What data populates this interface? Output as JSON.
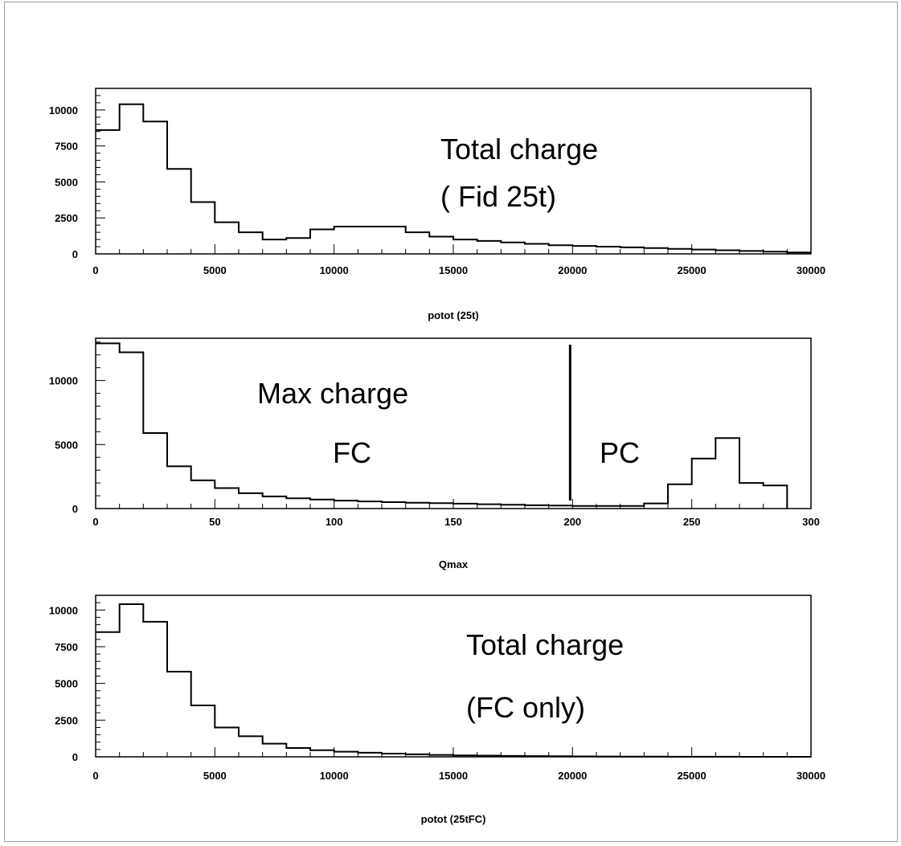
{
  "chart_data": [
    {
      "type": "histogram",
      "xlabel": "potot (25t)",
      "xlim": [
        0,
        30000
      ],
      "ylim": [
        0,
        11500
      ],
      "xticks": [
        0,
        5000,
        10000,
        15000,
        20000,
        25000,
        30000
      ],
      "yticks": [
        0,
        2500,
        5000,
        7500,
        10000
      ],
      "bin_width": 1000,
      "values": [
        8600,
        10400,
        9200,
        5900,
        3600,
        2200,
        1500,
        1000,
        1100,
        1700,
        1900,
        1900,
        1900,
        1500,
        1200,
        1000,
        900,
        800,
        700,
        600,
        550,
        500,
        450,
        400,
        350,
        300,
        250,
        200,
        150,
        100
      ],
      "annotations": [
        "Total charge",
        "( Fid 25t)"
      ]
    },
    {
      "type": "histogram",
      "xlabel": "Qmax",
      "xlim": [
        0,
        300
      ],
      "ylim": [
        0,
        13300
      ],
      "xticks": [
        0,
        50,
        100,
        150,
        200,
        250,
        300
      ],
      "yticks": [
        0,
        5000,
        10000
      ],
      "bin_width": 10,
      "values": [
        12900,
        12200,
        5900,
        3300,
        2200,
        1600,
        1200,
        950,
        800,
        700,
        620,
        560,
        500,
        460,
        420,
        380,
        340,
        300,
        260,
        230,
        210,
        200,
        200,
        400,
        1900,
        3900,
        5500,
        2000,
        1800
      ],
      "divider_x": 200,
      "annotations": [
        "Max charge",
        "FC",
        "PC"
      ]
    },
    {
      "type": "histogram",
      "xlabel": "potot (25tFC)",
      "xlim": [
        0,
        30000
      ],
      "ylim": [
        0,
        11000
      ],
      "xticks": [
        0,
        5000,
        10000,
        15000,
        20000,
        25000,
        30000
      ],
      "yticks": [
        0,
        2500,
        5000,
        7500,
        10000
      ],
      "bin_width": 1000,
      "values": [
        8500,
        10400,
        9200,
        5800,
        3500,
        2000,
        1400,
        900,
        600,
        450,
        350,
        280,
        220,
        170,
        130,
        100,
        80,
        60,
        50,
        40,
        30,
        20,
        15,
        10,
        8,
        5,
        3,
        2,
        1,
        0
      ],
      "annotations": [
        "Total charge",
        "(FC only)"
      ]
    }
  ]
}
